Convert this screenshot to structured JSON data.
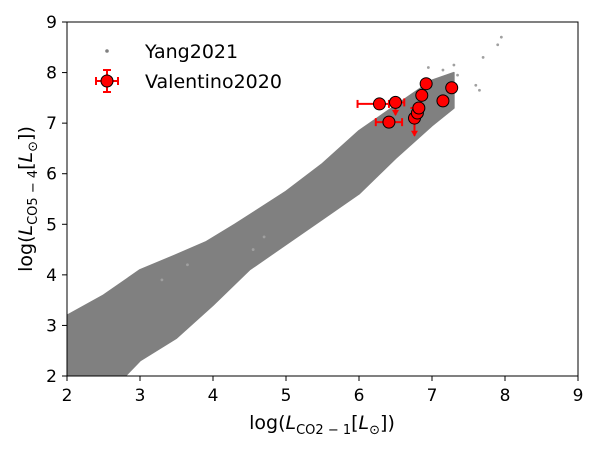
{
  "chart_data": {
    "type": "scatter",
    "xlabel_base": "log(",
    "xlabel_sym": "L",
    "xlabel_sub": "CO2 − 1",
    "xlabel_unit_open": "[",
    "xlabel_unit_sym": "L",
    "xlabel_unit_sub": "⊙",
    "xlabel_close": "])",
    "ylabel_base": "log(",
    "ylabel_sym": "L",
    "ylabel_sub": "CO5 − 4",
    "ylabel_unit_open": "[",
    "ylabel_unit_sym": "L",
    "ylabel_unit_sub": "⊙",
    "ylabel_close": "])",
    "xlim": [
      2,
      9
    ],
    "ylim": [
      2,
      9
    ],
    "xticks": [
      "2",
      "3",
      "4",
      "5",
      "6",
      "7",
      "8",
      "9"
    ],
    "yticks": [
      "2",
      "3",
      "4",
      "5",
      "6",
      "7",
      "8",
      "9"
    ],
    "grid": false,
    "legend_position": "top-left",
    "series": [
      {
        "name": "Yang2021",
        "kind": "density-cloud",
        "color": "#808080",
        "upper_edge": [
          [
            2,
            3.2
          ],
          [
            2.5,
            3.6
          ],
          [
            3.0,
            4.1
          ],
          [
            3.5,
            4.4
          ],
          [
            3.9,
            4.65
          ],
          [
            4.3,
            5.0
          ],
          [
            5.0,
            5.65
          ],
          [
            5.5,
            6.2
          ],
          [
            6.0,
            6.85
          ],
          [
            6.5,
            7.35
          ],
          [
            7.0,
            7.85
          ],
          [
            7.3,
            8.0
          ]
        ],
        "lower_edge": [
          [
            2,
            2.0
          ],
          [
            2.8,
            2.0
          ],
          [
            3.0,
            2.3
          ],
          [
            3.5,
            2.75
          ],
          [
            4.0,
            3.4
          ],
          [
            4.5,
            4.1
          ],
          [
            5.0,
            4.6
          ],
          [
            5.5,
            5.1
          ],
          [
            6.0,
            5.6
          ],
          [
            6.5,
            6.3
          ],
          [
            7.0,
            6.95
          ],
          [
            7.3,
            7.3
          ]
        ],
        "outliers": [
          [
            7.15,
            8.05
          ],
          [
            7.3,
            8.15
          ],
          [
            7.35,
            7.95
          ],
          [
            7.25,
            7.75
          ],
          [
            7.6,
            7.75
          ],
          [
            7.65,
            7.65
          ],
          [
            7.7,
            8.3
          ],
          [
            7.9,
            8.55
          ],
          [
            7.95,
            8.7
          ],
          [
            6.95,
            8.1
          ],
          [
            4.7,
            4.75
          ],
          [
            4.55,
            4.5
          ],
          [
            3.65,
            4.2
          ],
          [
            3.3,
            3.9
          ]
        ]
      },
      {
        "name": "Valentino2020",
        "kind": "errorbar",
        "color": "#ff0000",
        "edgecolor": "#000000",
        "points": [
          {
            "x": 6.28,
            "y": 7.38,
            "xerr": [
              0.3,
              0.13
            ],
            "yerr": [
              0.0,
              0.0
            ]
          },
          {
            "x": 6.41,
            "y": 7.02,
            "xerr": [
              0.0,
              0.0
            ],
            "yerr": [
              0.0,
              0.0
            ]
          },
          {
            "x": 6.5,
            "y": 7.41,
            "xerr": [
              0.0,
              0.12
            ],
            "yerr": [
              0.25,
              0.0
            ]
          },
          {
            "x": 6.76,
            "y": 7.1,
            "xerr": [
              0.0,
              0.0
            ],
            "yerr": [
              0.35,
              0.0
            ]
          },
          {
            "x": 6.8,
            "y": 7.2,
            "xerr": [
              0.0,
              0.0
            ],
            "yerr": [
              0.0,
              0.0
            ]
          },
          {
            "x": 6.82,
            "y": 7.3,
            "xerr": [
              0.0,
              0.0
            ],
            "yerr": [
              0.0,
              0.0
            ]
          },
          {
            "x": 6.86,
            "y": 7.55,
            "xerr": [
              0.0,
              0.0
            ],
            "yerr": [
              0.0,
              0.0
            ]
          },
          {
            "x": 6.92,
            "y": 7.78,
            "xerr": [
              0.0,
              0.0
            ],
            "yerr": [
              0.0,
              0.0
            ]
          },
          {
            "x": 7.15,
            "y": 7.44,
            "xerr": [
              0.0,
              0.0
            ],
            "yerr": [
              0.0,
              0.0
            ]
          },
          {
            "x": 7.27,
            "y": 7.7,
            "xerr": [
              0.0,
              0.0
            ],
            "yerr": [
              0.0,
              0.0
            ]
          }
        ],
        "extra_bars": [
          {
            "x": 6.41,
            "y": 7.02,
            "xerr": [
              0.18,
              0.18
            ],
            "yerr": [
              0.0,
              0.0
            ]
          },
          {
            "x": 6.76,
            "y": 7.1,
            "xerr": [
              0.0,
              0.0
            ],
            "yerr": [
              0.0,
              0.2
            ]
          }
        ]
      }
    ]
  }
}
